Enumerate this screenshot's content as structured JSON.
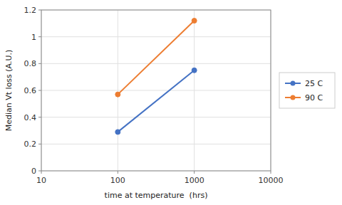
{
  "chart_data": {
    "type": "line",
    "x": [
      100,
      1000
    ],
    "series": [
      {
        "name": "25 C",
        "color": "#4472C4",
        "marker": "circle",
        "values": [
          0.29,
          0.75
        ]
      },
      {
        "name": "90 C",
        "color": "#ED7D31",
        "marker": "circle",
        "values": [
          0.57,
          1.12
        ]
      }
    ],
    "xlabel": "time at temperature  (hrs)",
    "ylabel": "Median Vt loss (A.U.)",
    "xlim": [
      10,
      10000
    ],
    "ylim": [
      0,
      1.2
    ],
    "xticks": [
      10,
      100,
      1000,
      10000
    ],
    "yticks": [
      0,
      0.2,
      0.4,
      0.6,
      0.8,
      1,
      1.2
    ],
    "log": "x",
    "grid": true,
    "legend": "right"
  }
}
